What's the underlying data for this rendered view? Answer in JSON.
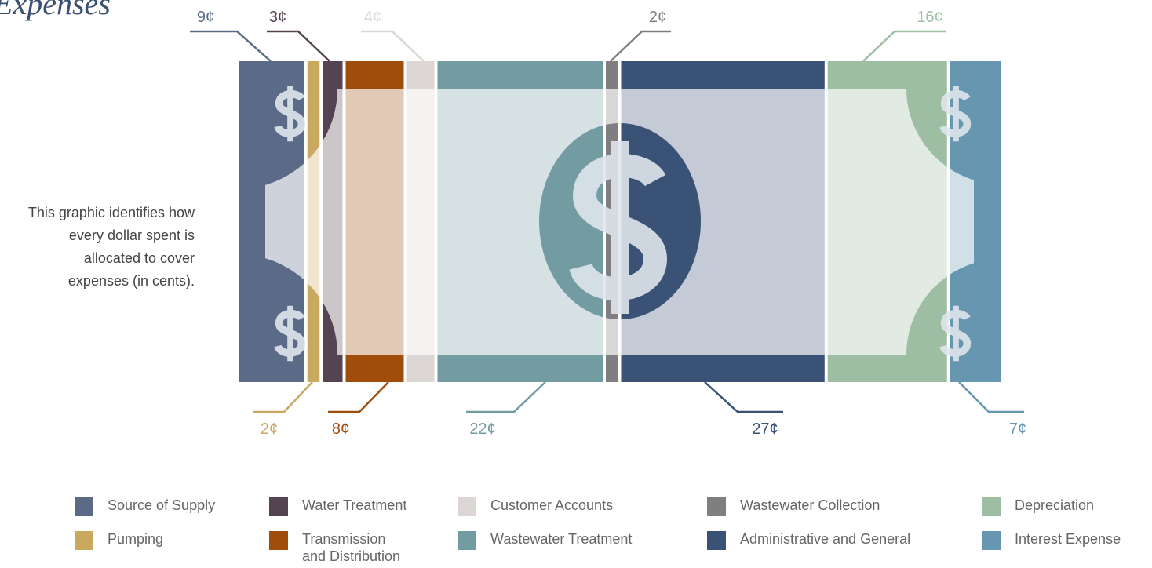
{
  "chart_data": {
    "type": "stackedbar",
    "title": "Expenses",
    "subtitle": "This graphic identifies how every dollar spent is allocated to cover expenses (in cents).",
    "series": [
      {
        "name": "Source of Supply",
        "color": "#5a6a87",
        "values": [
          9
        ],
        "value_labels": [
          "9¢"
        ]
      },
      {
        "name": "Pumping",
        "color": "#c9a860",
        "values": [
          2
        ],
        "value_labels": [
          "2¢"
        ]
      },
      {
        "name": "Water Treatment",
        "color": "#544350",
        "values": [
          3
        ],
        "value_labels": [
          "3¢"
        ]
      },
      {
        "name": "Transmission and Distribution",
        "color": "#a04d0c",
        "values": [
          8
        ],
        "value_labels": [
          "8¢"
        ]
      },
      {
        "name": "Customer Accounts",
        "color": "#dcd7d4",
        "values": [
          4
        ],
        "value_labels": [
          "4¢"
        ]
      },
      {
        "name": "Wastewater Treatment",
        "color": "#739ca2",
        "values": [
          22
        ],
        "value_labels": [
          "22¢"
        ]
      },
      {
        "name": "Wastewater Collection",
        "color": "#7f7f82",
        "values": [
          2
        ],
        "value_labels": [
          "2¢"
        ]
      },
      {
        "name": "Administrative and General",
        "color": "#3a5276",
        "values": [
          27
        ],
        "value_labels": [
          "27¢"
        ]
      },
      {
        "name": "Depreciation",
        "color": "#9dbea3",
        "values": [
          16
        ],
        "value_labels": [
          "16¢"
        ]
      },
      {
        "name": "Interest Expense",
        "color": "#6797b0",
        "values": [
          7
        ],
        "value_labels": [
          "7¢"
        ]
      }
    ]
  }
}
